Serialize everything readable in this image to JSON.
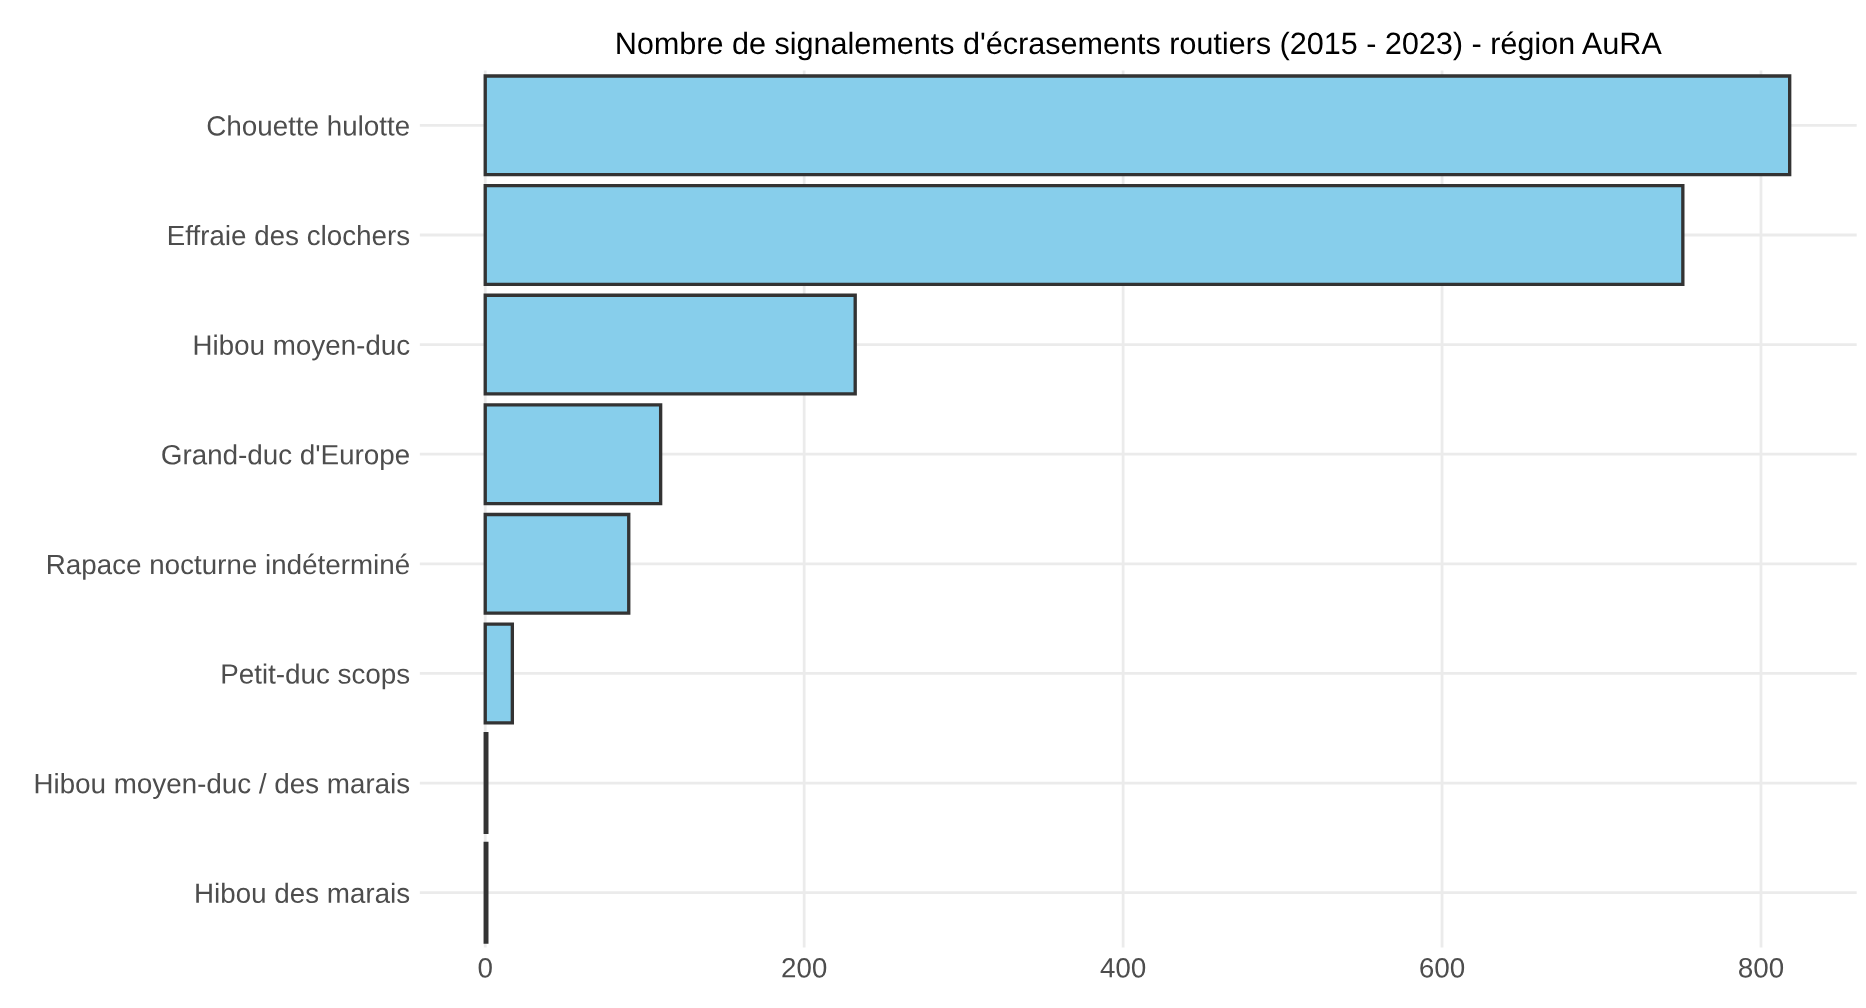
{
  "chart_data": {
    "type": "bar",
    "orientation": "horizontal",
    "title": "Nombre de signalements d'écrasements routiers (2015 - 2023) - région AuRA",
    "categories": [
      "Chouette hulotte",
      "Effraie des clochers",
      "Hibou moyen-duc",
      "Grand-duc d'Europe",
      "Rapace nocturne indéterminé",
      "Petit-duc scops",
      "Hibou moyen-duc / des marais",
      "Hibou des marais"
    ],
    "values": [
      818,
      751,
      232,
      110,
      90,
      17,
      1,
      1
    ],
    "color": "#87ceeb",
    "xlim": [
      -41,
      860
    ],
    "xticks": [
      0,
      200,
      400,
      600,
      800
    ],
    "grid": true
  }
}
